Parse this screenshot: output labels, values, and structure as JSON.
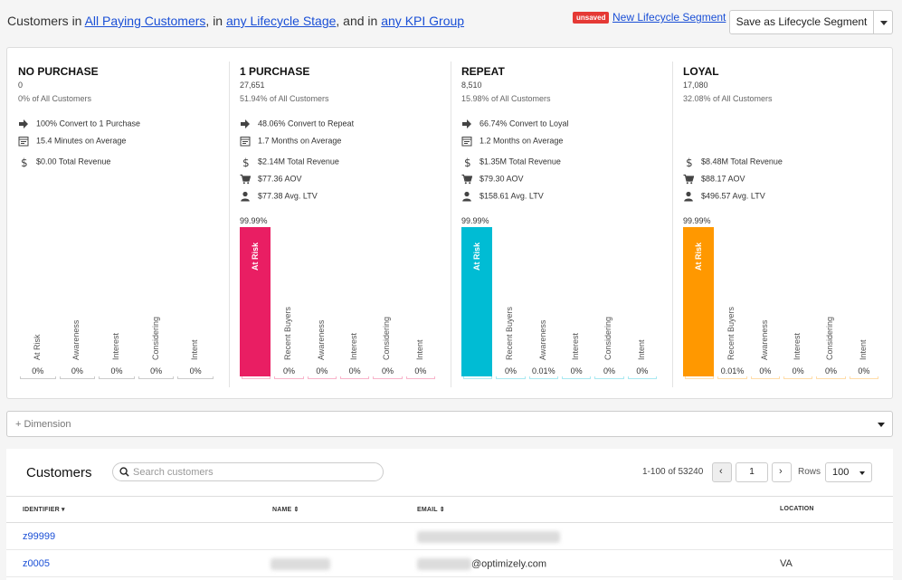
{
  "filter": {
    "prefix": "Customers in",
    "segment": "All Paying Customers",
    "sep1": ", in",
    "lifecycle": "any Lifecycle Stage",
    "sep2": ", and in",
    "kpi": "any KPI Group"
  },
  "header": {
    "unsaved_badge": "unsaved",
    "new_segment_link": "New Lifecycle Segment",
    "save_button": "Save as Lifecycle Segment"
  },
  "stages": [
    {
      "title": "NO PURCHASE",
      "count": "0",
      "pct_text": "0% of All Customers",
      "metrics": [
        {
          "icon": "arrow-right-icon",
          "text": "100% Convert to 1 Purchase"
        },
        {
          "icon": "calendar-icon",
          "text": "15.4 Minutes on Average"
        },
        {
          "icon": "dollar-icon",
          "text": "$0.00 Total Revenue"
        }
      ],
      "bars": [
        {
          "label": "At Risk",
          "value": "0%",
          "fill": 0
        },
        {
          "label": "Awareness",
          "value": "0%",
          "fill": 0
        },
        {
          "label": "Interest",
          "value": "0%",
          "fill": 0
        },
        {
          "label": "Considering",
          "value": "0%",
          "fill": 0
        },
        {
          "label": "Intent",
          "value": "0%",
          "fill": 0
        }
      ],
      "color": "#cccccc"
    },
    {
      "title": "1 PURCHASE",
      "count": "27,651",
      "pct_text": "51.94% of All Customers",
      "metrics": [
        {
          "icon": "arrow-right-icon",
          "text": "48.06% Convert to Repeat"
        },
        {
          "icon": "calendar-icon",
          "text": "1.7 Months on Average"
        },
        {
          "icon": "dollar-icon",
          "text": "$2.14M Total Revenue"
        },
        {
          "icon": "cart-icon",
          "text": "$77.36 AOV"
        },
        {
          "icon": "user-icon",
          "text": "$77.38 Avg. LTV"
        }
      ],
      "bars": [
        {
          "label": "At Risk",
          "value": "99.99%",
          "fill": 0.9999
        },
        {
          "label": "Recent Buyers",
          "value": "0%",
          "fill": 0
        },
        {
          "label": "Awareness",
          "value": "0%",
          "fill": 0
        },
        {
          "label": "Interest",
          "value": "0%",
          "fill": 0
        },
        {
          "label": "Considering",
          "value": "0%",
          "fill": 0
        },
        {
          "label": "Intent",
          "value": "0%",
          "fill": 0
        }
      ],
      "color": "#e91e63"
    },
    {
      "title": "REPEAT",
      "count": "8,510",
      "pct_text": "15.98% of All Customers",
      "metrics": [
        {
          "icon": "arrow-right-icon",
          "text": "66.74% Convert to Loyal"
        },
        {
          "icon": "calendar-icon",
          "text": "1.2 Months on Average"
        },
        {
          "icon": "dollar-icon",
          "text": "$1.35M Total Revenue"
        },
        {
          "icon": "cart-icon",
          "text": "$79.30 AOV"
        },
        {
          "icon": "user-icon",
          "text": "$158.61 Avg. LTV"
        }
      ],
      "bars": [
        {
          "label": "At Risk",
          "value": "99.99%",
          "fill": 0.9999
        },
        {
          "label": "Recent Buyers",
          "value": "0%",
          "fill": 0
        },
        {
          "label": "Awareness",
          "value": "0.01%",
          "fill": 0
        },
        {
          "label": "Interest",
          "value": "0%",
          "fill": 0
        },
        {
          "label": "Considering",
          "value": "0%",
          "fill": 0
        },
        {
          "label": "Intent",
          "value": "0%",
          "fill": 0
        }
      ],
      "color": "#00bcd4"
    },
    {
      "title": "LOYAL",
      "count": "17,080",
      "pct_text": "32.08% of All Customers",
      "metrics": [
        {
          "icon": "dollar-icon",
          "text": "$8.48M Total Revenue"
        },
        {
          "icon": "cart-icon",
          "text": "$88.17 AOV"
        },
        {
          "icon": "user-icon",
          "text": "$496.57 Avg. LTV"
        }
      ],
      "bars": [
        {
          "label": "At Risk",
          "value": "99.99%",
          "fill": 0.9999
        },
        {
          "label": "Recent Buyers",
          "value": "0.01%",
          "fill": 0
        },
        {
          "label": "Awareness",
          "value": "0%",
          "fill": 0
        },
        {
          "label": "Interest",
          "value": "0%",
          "fill": 0
        },
        {
          "label": "Considering",
          "value": "0%",
          "fill": 0
        },
        {
          "label": "Intent",
          "value": "0%",
          "fill": 0
        }
      ],
      "color": "#ff9800"
    }
  ],
  "dimension": {
    "label": "+ Dimension"
  },
  "customers": {
    "title": "Customers",
    "search_placeholder": "Search customers",
    "range": "1-100 of 53240",
    "page": "1",
    "rows_label": "Rows",
    "rows_value": "100",
    "columns": [
      "IDENTIFIER ▾",
      "NAME ⇕",
      "EMAIL ⇕",
      "LOCATION"
    ],
    "rows": [
      {
        "identifier": "z99999",
        "name": "",
        "email": "",
        "location": ""
      },
      {
        "identifier": "z0005",
        "name": "",
        "email": "@optimizely.com",
        "location": "VA"
      }
    ]
  }
}
